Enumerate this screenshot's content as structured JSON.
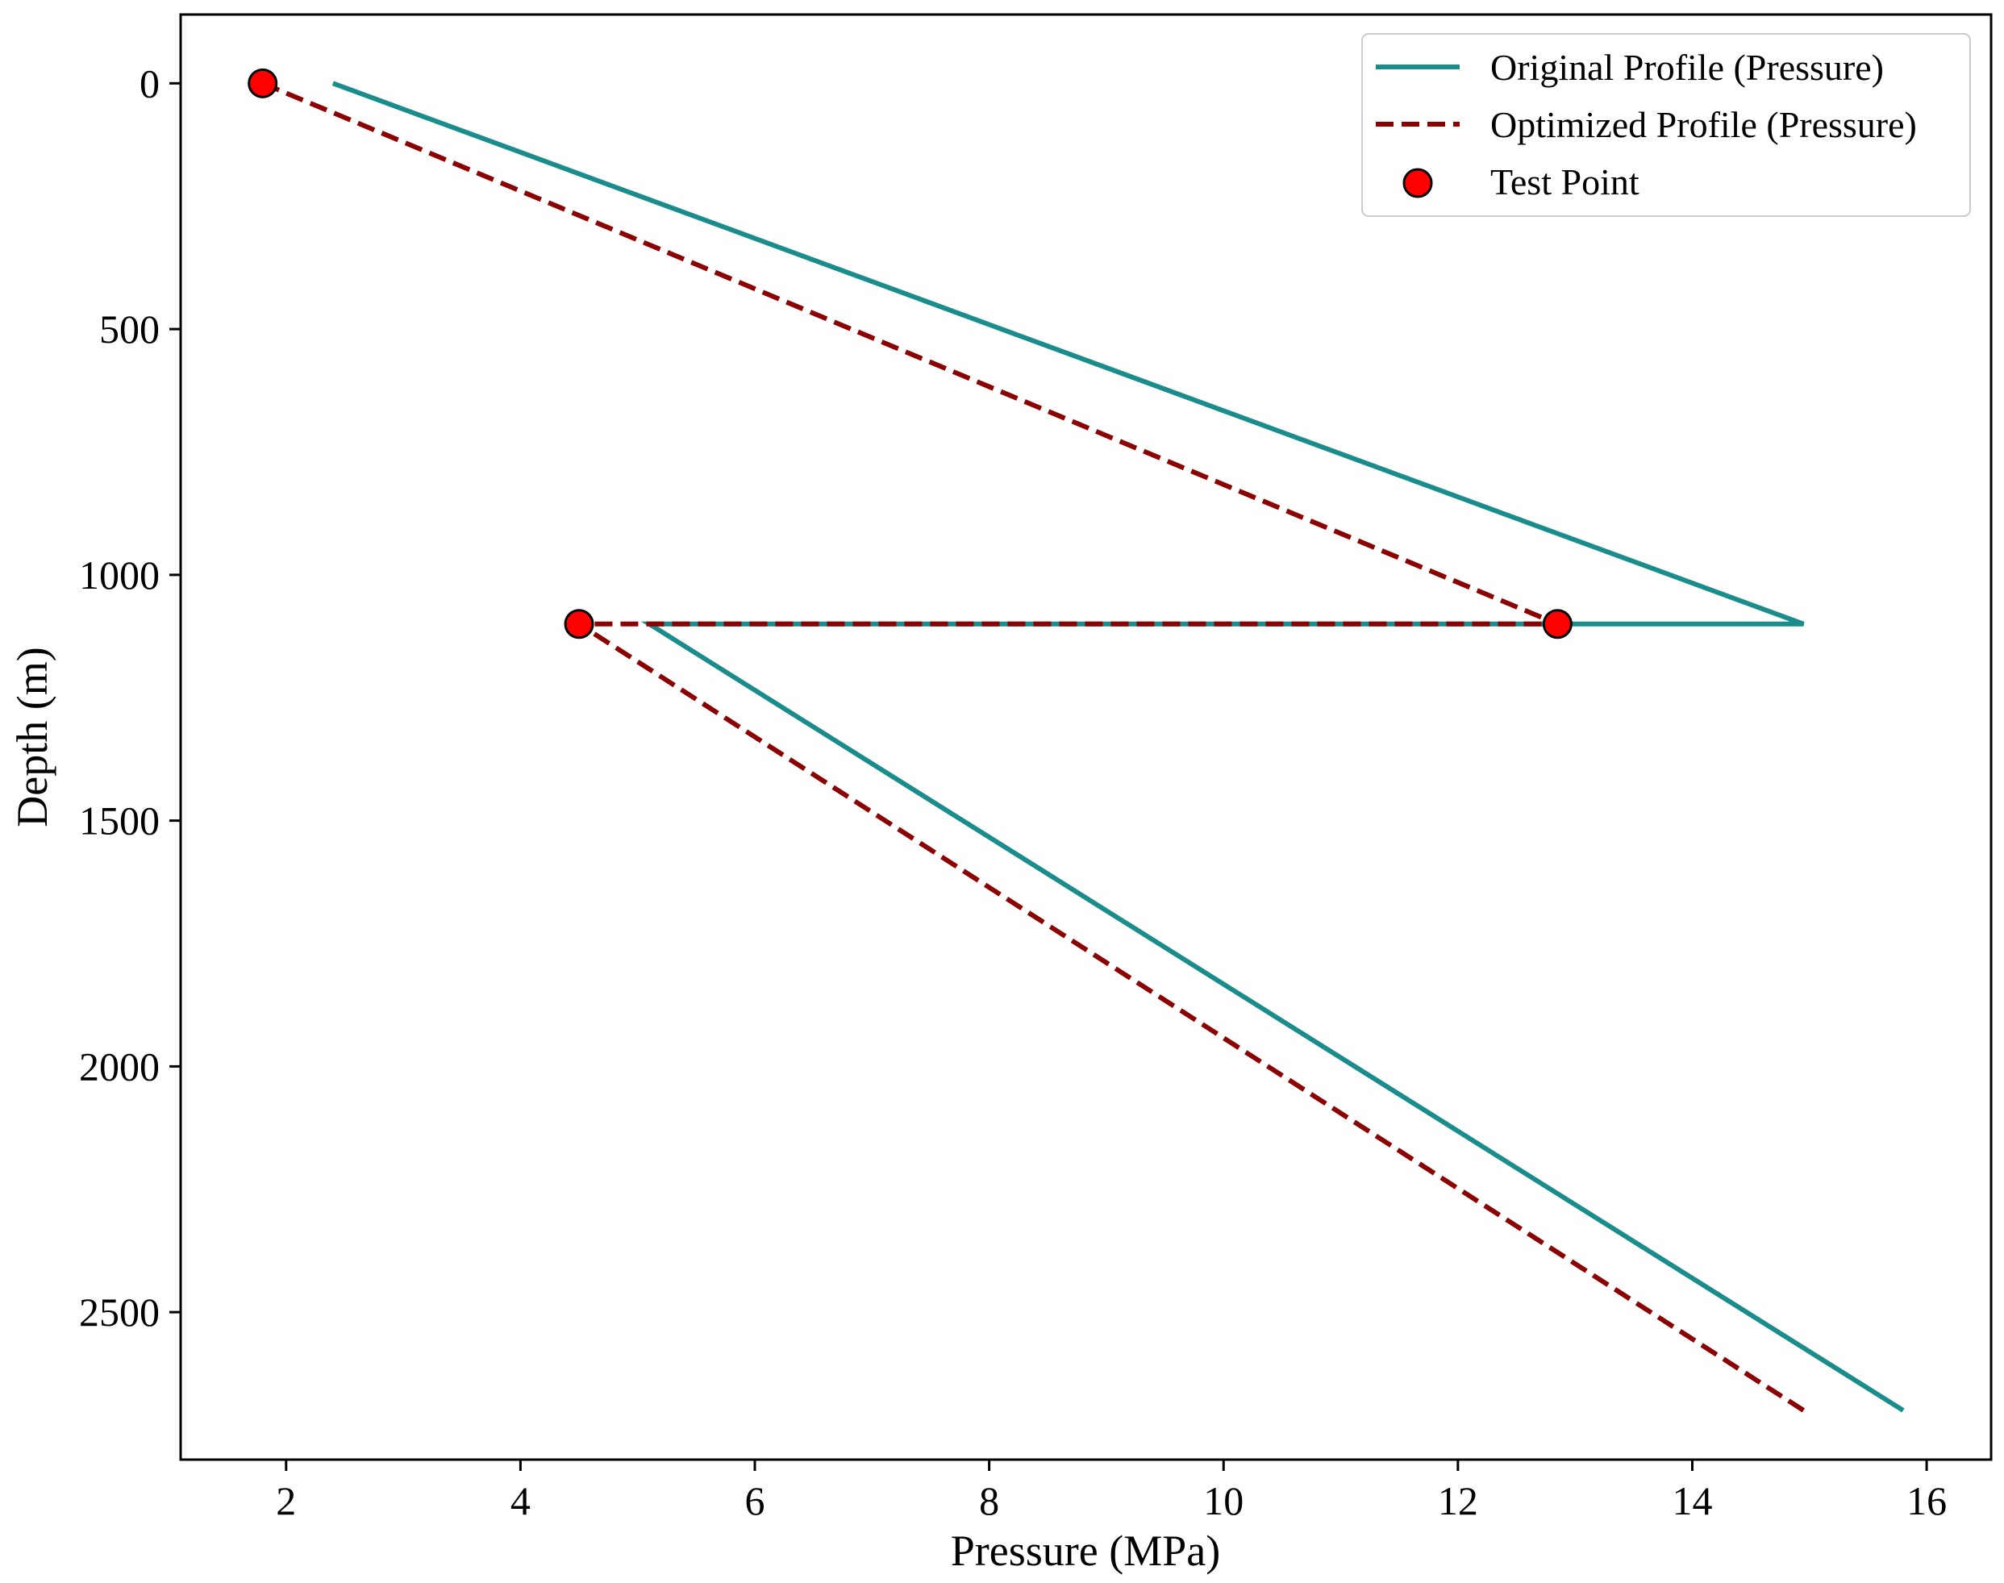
{
  "chart_data": {
    "type": "line",
    "title": "",
    "xlabel": "Pressure (MPa)",
    "ylabel": "Depth (m)",
    "xlim": [
      1.1,
      16.55
    ],
    "ylim": [
      2800,
      -140
    ],
    "y_inverted": true,
    "xticks": [
      2,
      4,
      6,
      8,
      10,
      12,
      14,
      16
    ],
    "yticks": [
      0,
      500,
      1000,
      1500,
      2000,
      2500
    ],
    "grid": false,
    "legend_position": "upper right",
    "series": [
      {
        "name": "Original Profile (Pressure)",
        "style": "solid",
        "color": "#1a8c8c",
        "points": [
          [
            2.4,
            0
          ],
          [
            14.95,
            1100
          ],
          [
            5.1,
            1100
          ],
          [
            15.8,
            2700
          ]
        ]
      },
      {
        "name": "Optimized Profile (Pressure)",
        "style": "dashed",
        "color": "#8b0000",
        "points": [
          [
            1.8,
            0
          ],
          [
            12.85,
            1100
          ],
          [
            4.5,
            1100
          ],
          [
            14.95,
            2700
          ]
        ]
      },
      {
        "name": "Test Point",
        "style": "marker",
        "color": "#ff0000",
        "points": [
          [
            1.8,
            0
          ],
          [
            12.85,
            1100
          ],
          [
            4.5,
            1100
          ]
        ]
      }
    ]
  }
}
